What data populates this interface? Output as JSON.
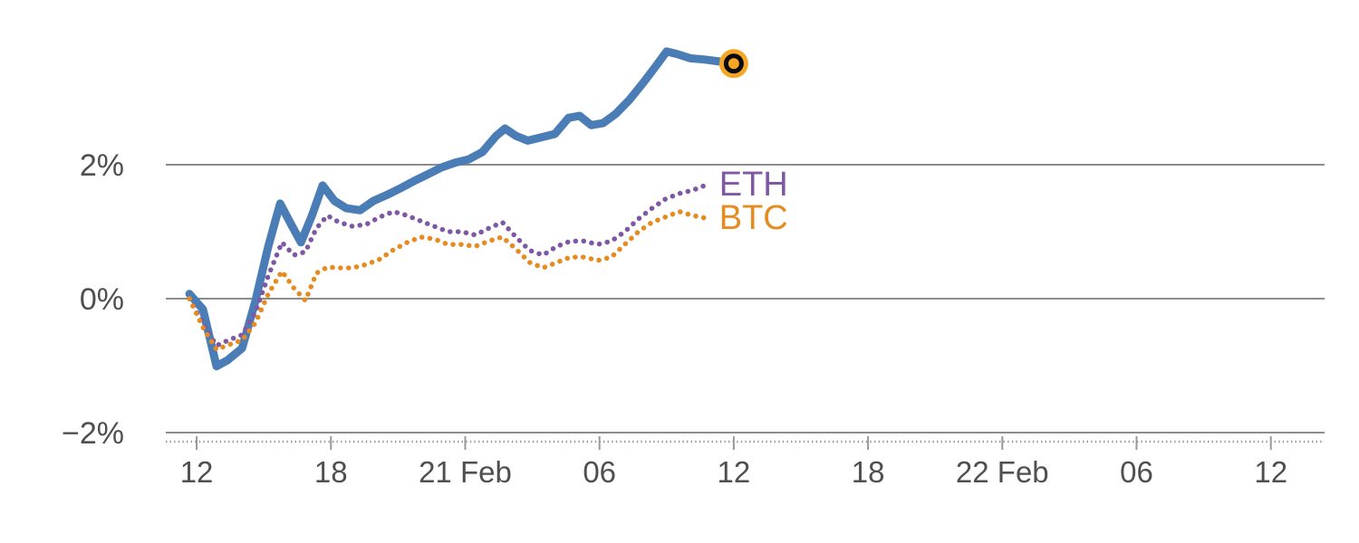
{
  "page": {
    "background": "#ffffff"
  },
  "chart_data": {
    "type": "line",
    "title": "",
    "x_unit": "hours since 20 Feb 00:00",
    "x_range": [
      10.5,
      62.4
    ],
    "y_range": [
      -2.4,
      4.2
    ],
    "grid": true,
    "colors": {
      "gridline": "#8c8c8c",
      "tick_text": "#4f4f4f",
      "minor_axis": "#999999"
    },
    "x_ticks": [
      {
        "value": 12,
        "label": "12"
      },
      {
        "value": 18,
        "label": "18"
      },
      {
        "value": 24,
        "label": "21 Feb"
      },
      {
        "value": 30,
        "label": "06"
      },
      {
        "value": 36,
        "label": "12"
      },
      {
        "value": 42,
        "label": "18"
      },
      {
        "value": 48,
        "label": "22 Feb"
      },
      {
        "value": 54,
        "label": "06"
      },
      {
        "value": 60,
        "label": "12"
      }
    ],
    "y_ticks": [
      {
        "value": 2,
        "label": "2%"
      },
      {
        "value": 0,
        "label": "0%"
      },
      {
        "value": -2,
        "label": "−2%"
      }
    ],
    "marker": {
      "fill": "#f5a623",
      "ring": "#0a0a0a"
    },
    "series": [
      {
        "id": "main",
        "label": "",
        "color": "#4a7db6",
        "style": "solid",
        "width": 9,
        "marker_end": true,
        "points": [
          [
            11.68,
            0.07
          ],
          [
            12.28,
            -0.16
          ],
          [
            12.89,
            -1.01
          ],
          [
            13.38,
            -0.92
          ],
          [
            14.03,
            -0.74
          ],
          [
            14.63,
            -0.03
          ],
          [
            15.2,
            0.78
          ],
          [
            15.73,
            1.42
          ],
          [
            16.22,
            1.11
          ],
          [
            16.66,
            0.84
          ],
          [
            17.15,
            1.24
          ],
          [
            17.63,
            1.69
          ],
          [
            18.16,
            1.46
          ],
          [
            18.69,
            1.35
          ],
          [
            19.3,
            1.32
          ],
          [
            19.9,
            1.46
          ],
          [
            20.51,
            1.55
          ],
          [
            21.12,
            1.65
          ],
          [
            21.73,
            1.76
          ],
          [
            22.34,
            1.86
          ],
          [
            22.94,
            1.96
          ],
          [
            23.55,
            2.03
          ],
          [
            24.16,
            2.08
          ],
          [
            24.77,
            2.19
          ],
          [
            25.38,
            2.43
          ],
          [
            25.78,
            2.54
          ],
          [
            26.27,
            2.43
          ],
          [
            26.8,
            2.36
          ],
          [
            27.4,
            2.41
          ],
          [
            28.01,
            2.46
          ],
          [
            28.62,
            2.7
          ],
          [
            29.11,
            2.73
          ],
          [
            29.63,
            2.59
          ],
          [
            30.16,
            2.62
          ],
          [
            30.73,
            2.76
          ],
          [
            31.34,
            2.97
          ],
          [
            31.95,
            3.22
          ],
          [
            32.47,
            3.45
          ],
          [
            33.0,
            3.69
          ],
          [
            33.49,
            3.65
          ],
          [
            34.05,
            3.59
          ],
          [
            34.7,
            3.57
          ],
          [
            35.39,
            3.54
          ],
          [
            36.0,
            3.51
          ]
        ]
      },
      {
        "id": "eth",
        "label": "ETH",
        "color": "#7e57a5",
        "style": "dotted",
        "width": 5.5,
        "marker_end": false,
        "points": [
          [
            11.68,
            0.0
          ],
          [
            12.28,
            -0.38
          ],
          [
            12.89,
            -0.7
          ],
          [
            13.42,
            -0.62
          ],
          [
            14.03,
            -0.54
          ],
          [
            14.63,
            -0.2
          ],
          [
            15.2,
            0.34
          ],
          [
            15.81,
            0.84
          ],
          [
            16.34,
            0.65
          ],
          [
            16.86,
            0.7
          ],
          [
            17.35,
            1.05
          ],
          [
            17.84,
            1.24
          ],
          [
            18.36,
            1.14
          ],
          [
            18.97,
            1.08
          ],
          [
            19.58,
            1.11
          ],
          [
            20.19,
            1.22
          ],
          [
            20.8,
            1.3
          ],
          [
            21.41,
            1.24
          ],
          [
            22.01,
            1.16
          ],
          [
            22.62,
            1.08
          ],
          [
            23.23,
            1.0
          ],
          [
            23.84,
            1.0
          ],
          [
            24.45,
            0.95
          ],
          [
            25.05,
            1.05
          ],
          [
            25.66,
            1.14
          ],
          [
            26.27,
            0.92
          ],
          [
            26.88,
            0.72
          ],
          [
            27.48,
            0.65
          ],
          [
            28.09,
            0.78
          ],
          [
            28.7,
            0.86
          ],
          [
            29.31,
            0.86
          ],
          [
            29.92,
            0.81
          ],
          [
            30.53,
            0.86
          ],
          [
            31.13,
            1.0
          ],
          [
            31.74,
            1.19
          ],
          [
            32.35,
            1.35
          ],
          [
            32.96,
            1.49
          ],
          [
            33.57,
            1.57
          ],
          [
            34.18,
            1.62
          ],
          [
            34.78,
            1.7
          ]
        ]
      },
      {
        "id": "btc",
        "label": "BTC",
        "color": "#e58b20",
        "style": "dotted",
        "width": 5.5,
        "marker_end": false,
        "points": [
          [
            11.68,
            0.0
          ],
          [
            12.28,
            -0.43
          ],
          [
            12.89,
            -0.76
          ],
          [
            13.42,
            -0.69
          ],
          [
            14.03,
            -0.62
          ],
          [
            14.63,
            -0.36
          ],
          [
            15.2,
            0.07
          ],
          [
            15.81,
            0.41
          ],
          [
            16.34,
            0.16
          ],
          [
            16.86,
            -0.03
          ],
          [
            17.35,
            0.38
          ],
          [
            17.84,
            0.47
          ],
          [
            18.36,
            0.46
          ],
          [
            18.97,
            0.46
          ],
          [
            19.58,
            0.51
          ],
          [
            20.19,
            0.59
          ],
          [
            20.8,
            0.73
          ],
          [
            21.41,
            0.84
          ],
          [
            22.01,
            0.92
          ],
          [
            22.62,
            0.89
          ],
          [
            23.23,
            0.81
          ],
          [
            23.84,
            0.81
          ],
          [
            24.45,
            0.78
          ],
          [
            25.05,
            0.86
          ],
          [
            25.66,
            0.92
          ],
          [
            26.27,
            0.74
          ],
          [
            26.88,
            0.54
          ],
          [
            27.48,
            0.46
          ],
          [
            28.09,
            0.54
          ],
          [
            28.7,
            0.62
          ],
          [
            29.31,
            0.62
          ],
          [
            29.92,
            0.57
          ],
          [
            30.53,
            0.62
          ],
          [
            31.13,
            0.81
          ],
          [
            31.74,
            1.0
          ],
          [
            32.35,
            1.14
          ],
          [
            32.96,
            1.22
          ],
          [
            33.57,
            1.3
          ],
          [
            34.18,
            1.24
          ],
          [
            34.78,
            1.2
          ]
        ]
      }
    ]
  }
}
